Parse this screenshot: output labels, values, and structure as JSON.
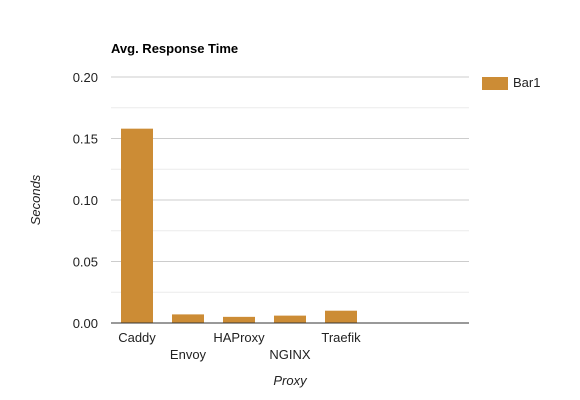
{
  "chart_data": {
    "type": "bar",
    "title": "Avg. Response Time",
    "xlabel": "Proxy",
    "ylabel": "Seconds",
    "categories": [
      "Caddy",
      "Envoy",
      "HAProxy",
      "NGINX",
      "Traefik"
    ],
    "series": [
      {
        "name": "Bar1",
        "values": [
          0.158,
          0.007,
          0.005,
          0.006,
          0.01
        ]
      }
    ],
    "ylim": [
      0,
      0.2
    ],
    "y_ticks": [
      "0.00",
      "0.05",
      "0.10",
      "0.15",
      "0.20"
    ],
    "grid": true,
    "legend_position": "right",
    "colors": {
      "bar": "#cc8c35",
      "gridline": "#cccccc",
      "minor_gridline": "#ebebeb",
      "axis": "#333333"
    }
  }
}
